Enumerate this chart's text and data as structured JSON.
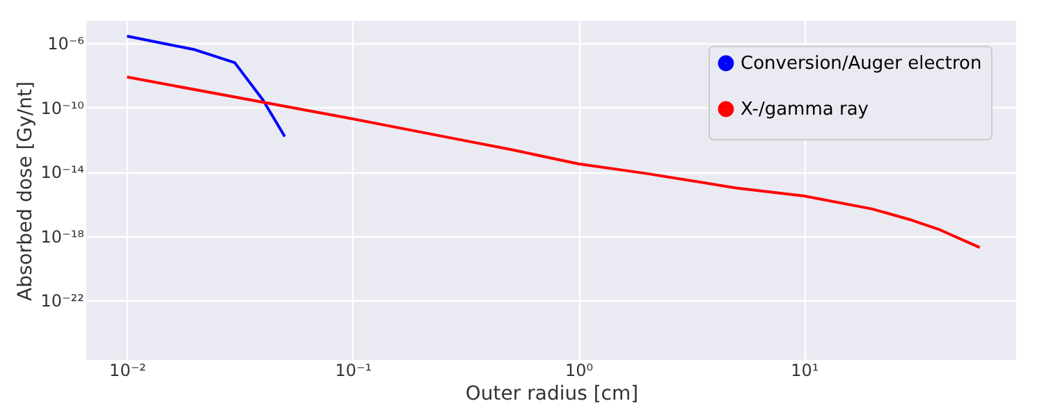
{
  "chart_data": {
    "type": "line",
    "xlabel": "Outer radius [cm]",
    "ylabel": "Absorbed dose [Gy/nt]",
    "log": "xy",
    "grid": true,
    "legend": "top right",
    "marker": "none",
    "line_style": "solid",
    "xlim": [
      0.0066,
      87
    ],
    "ylim": [
      2e-26,
      2.5e-05
    ],
    "xticks": [
      {
        "value": 0.01,
        "label": "10⁻²"
      },
      {
        "value": 0.1,
        "label": "10⁻¹"
      },
      {
        "value": 1,
        "label": "10⁰"
      },
      {
        "value": 10,
        "label": "10¹"
      }
    ],
    "yticks": [
      {
        "value": 1e-22,
        "label": "10⁻²²"
      },
      {
        "value": 1e-18,
        "label": "10⁻¹⁸"
      },
      {
        "value": 1e-14,
        "label": "10⁻¹⁴"
      },
      {
        "value": 1e-10,
        "label": "10⁻¹⁰"
      },
      {
        "value": 1e-06,
        "label": "10⁻⁶"
      }
    ],
    "series": [
      {
        "name": "Conversion/Auger electron",
        "color": "#0000ff",
        "x": [
          0.01,
          0.02,
          0.03,
          0.04,
          0.05
        ],
        "values": [
          2.8e-06,
          4e-07,
          6.3e-08,
          3e-10,
          1.6e-12
        ]
      },
      {
        "name": "X-/gamma ray",
        "color": "#ff0000",
        "x": [
          0.01,
          0.1,
          0.3,
          0.5,
          1,
          2,
          5,
          10,
          20,
          30,
          40,
          60
        ],
        "values": [
          8e-09,
          2e-11,
          1e-12,
          2.5e-13,
          3.2e-14,
          8e-15,
          1e-15,
          3.2e-16,
          5e-17,
          1e-17,
          2.5e-18,
          2e-19
        ]
      }
    ]
  }
}
